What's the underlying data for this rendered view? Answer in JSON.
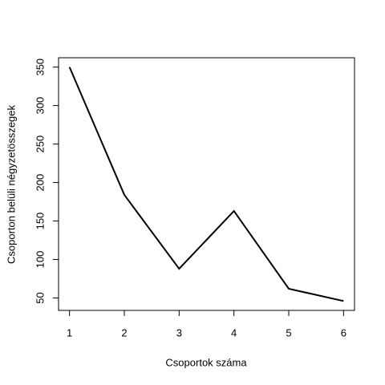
{
  "chart_data": {
    "type": "line",
    "x_label": "Csoportok száma",
    "y_label": "Csoporton belüli négyzetösszegek",
    "x": [
      1,
      2,
      3,
      4,
      5,
      6
    ],
    "values": [
      350,
      184,
      88,
      163,
      62,
      46
    ],
    "color": "#000000",
    "xlim": [
      0.8,
      6.2
    ],
    "xticks": [
      1,
      2,
      3,
      4,
      5,
      6
    ],
    "ylim": [
      33.84,
      362.16
    ],
    "yticks": [
      50,
      100,
      150,
      200,
      250,
      300,
      350
    ]
  }
}
